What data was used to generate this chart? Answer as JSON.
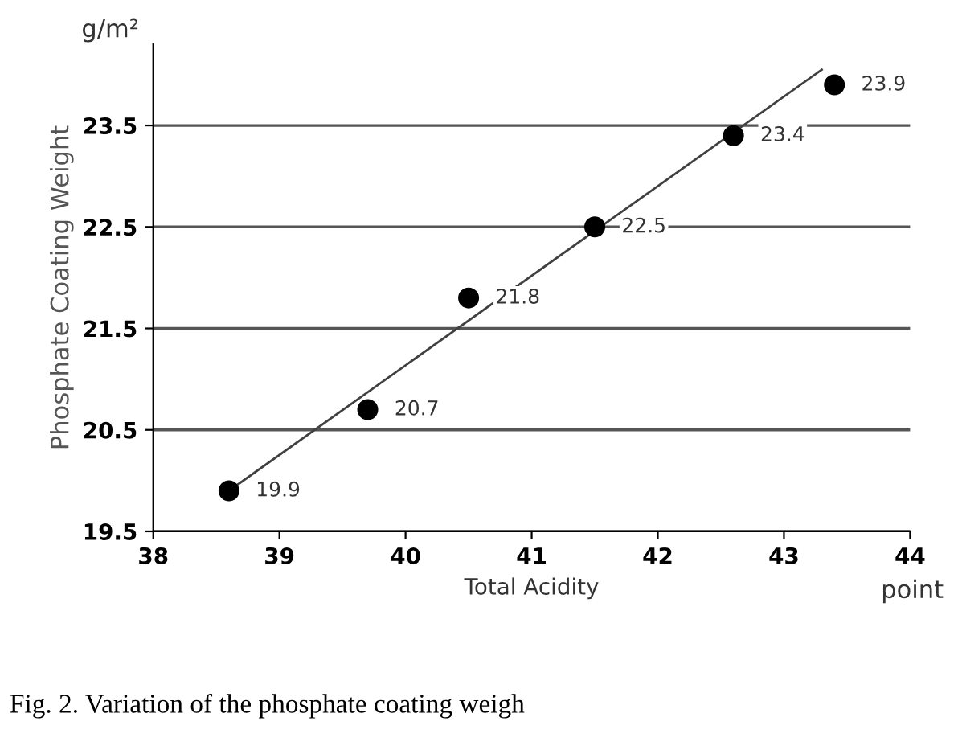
{
  "chart_data": {
    "type": "scatter",
    "xlabel": "Total Acidity",
    "ylabel": "Phosphate Coating Weight",
    "x": [
      38.6,
      39.7,
      40.5,
      41.5,
      42.6,
      43.4
    ],
    "series": [
      {
        "color": "#000000",
        "marker": "circle",
        "values": [
          19.9,
          20.7,
          21.8,
          22.5,
          23.4,
          23.9
        ],
        "value_labels": [
          "19.9",
          "20.7",
          "21.8",
          "22.5",
          "23.4",
          "23.9"
        ]
      },
      {
        "type": "line",
        "marker": "none",
        "color": "#404040",
        "x": [
          38.6,
          43.3
        ],
        "values": [
          19.9,
          24.05
        ]
      }
    ],
    "xlim": [
      38,
      44
    ],
    "xticks": [
      38,
      39,
      40,
      41,
      42,
      43,
      44
    ],
    "ylim": [
      19.5,
      24.3
    ],
    "yticks": [
      19.5,
      20.5,
      21.5,
      22.5,
      23.5
    ],
    "grid": "y",
    "line_style": "solid",
    "legend": false,
    "annotations": [
      "g/m²",
      "point",
      "Fig. 2. Variation of the phosphate coating weigh"
    ]
  }
}
